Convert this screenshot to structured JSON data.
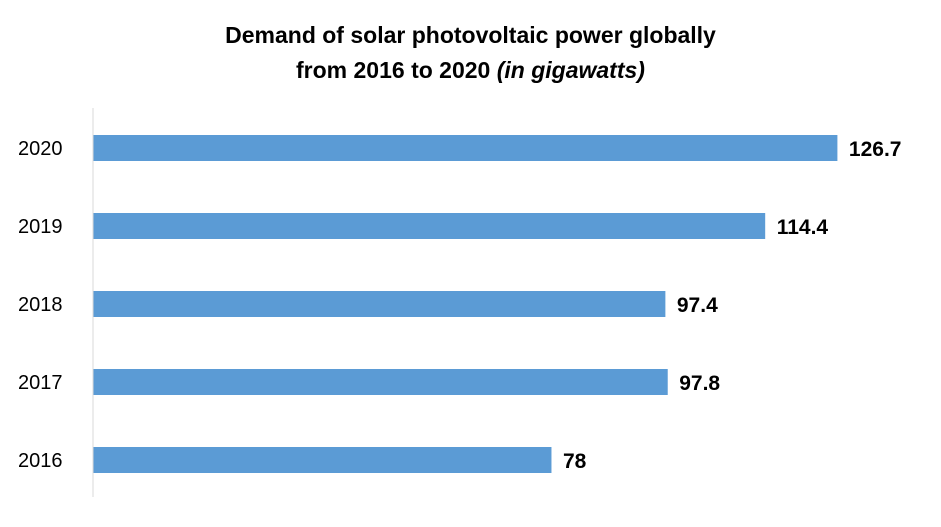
{
  "chart_data": {
    "type": "bar",
    "orientation": "horizontal",
    "title_line1": "Demand of solar photovoltaic power globally",
    "title_line2": "from 2016 to 2020 ",
    "title_italic": "(in gigawatts)",
    "categories": [
      "2020",
      "2019",
      "2018",
      "2017",
      "2016"
    ],
    "values": [
      126.7,
      114.4,
      97.4,
      97.8,
      78
    ],
    "value_labels": [
      "126.7",
      "114.4",
      "97.4",
      "97.8",
      "78"
    ],
    "xlim": [
      0,
      140
    ],
    "grid": false,
    "legend": "none",
    "bar_color": "#5B9BD5"
  }
}
